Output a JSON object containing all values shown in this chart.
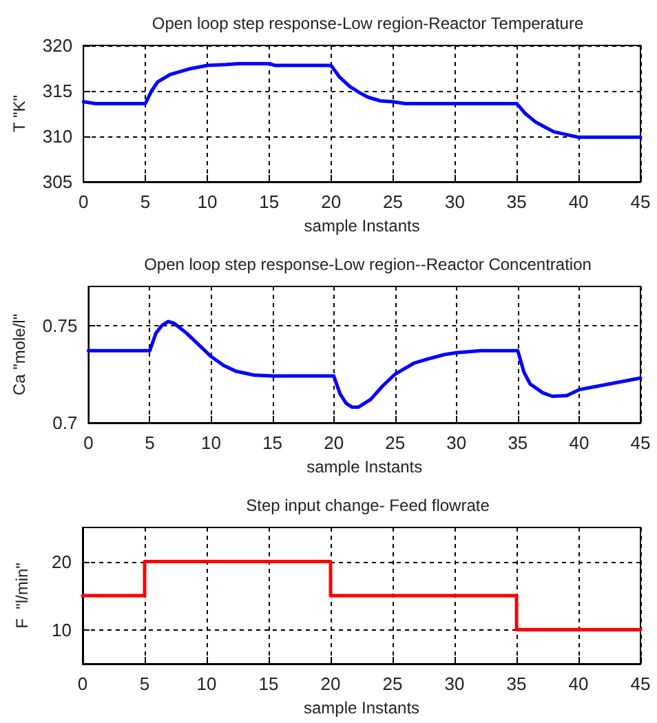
{
  "chart_data": [
    {
      "type": "line",
      "title": "Open loop step response-Low region-Reactor Temperature",
      "xlabel": "sample Instants",
      "ylabel": "T \"K\"",
      "x": [
        0,
        1,
        5,
        5.5,
        6,
        7,
        7.5,
        8.5,
        10,
        11.5,
        12.5,
        15,
        15.5,
        20,
        20.7,
        21.5,
        22.3,
        23,
        24,
        25,
        26,
        35,
        35.7,
        36.5,
        37.3,
        38,
        39,
        40,
        45
      ],
      "series": [
        {
          "color": "#0000ff",
          "values": [
            313.8,
            313.6,
            313.6,
            315.0,
            316.0,
            316.8,
            317.0,
            317.4,
            317.8,
            317.9,
            318.0,
            318.0,
            317.8,
            317.8,
            316.5,
            315.5,
            314.8,
            314.3,
            313.9,
            313.8,
            313.6,
            313.6,
            312.5,
            311.6,
            311.0,
            310.5,
            310.2,
            309.9,
            309.9
          ]
        }
      ],
      "xlim": [
        0,
        45
      ],
      "xticks": [
        0,
        5,
        10,
        15,
        20,
        25,
        30,
        35,
        40,
        45
      ],
      "ylim": [
        305,
        320
      ],
      "yticks": [
        305,
        310,
        315,
        320
      ],
      "grid": true,
      "line_style": "solid",
      "marker": "none"
    },
    {
      "type": "line",
      "title": "Open loop step response-Low region--Reactor Concentration",
      "xlabel": "sample Instants",
      "ylabel": "Ca \"mole/l\"",
      "x": [
        0,
        5,
        5.5,
        6,
        6.5,
        7,
        8,
        9,
        10,
        11,
        12,
        13.5,
        15,
        20,
        20.5,
        21,
        21.5,
        22,
        23,
        24,
        25,
        26.5,
        27.5,
        29,
        30,
        32,
        35,
        35.5,
        36,
        37,
        37.8,
        39,
        40,
        42.5,
        45
      ],
      "series": [
        {
          "color": "#0000ff",
          "values": [
            0.737,
            0.737,
            0.746,
            0.75,
            0.752,
            0.751,
            0.746,
            0.74,
            0.734,
            0.7295,
            0.7265,
            0.7245,
            0.724,
            0.724,
            0.715,
            0.71,
            0.708,
            0.708,
            0.712,
            0.719,
            0.725,
            0.7305,
            0.7325,
            0.735,
            0.736,
            0.737,
            0.737,
            0.726,
            0.72,
            0.7155,
            0.7136,
            0.714,
            0.717,
            0.72,
            0.723
          ]
        }
      ],
      "xlim": [
        0,
        45
      ],
      "xticks": [
        0,
        5,
        10,
        15,
        20,
        25,
        30,
        35,
        40,
        45
      ],
      "ylim": [
        0.7,
        0.77
      ],
      "yticks": [
        0.7,
        0.75
      ],
      "grid": true,
      "line_style": "solid",
      "marker": "none"
    },
    {
      "type": "step",
      "title": "Step input change- Feed flowrate",
      "xlabel": "sample Instants",
      "ylabel": "F  \"l/min\"",
      "x": [
        0,
        5,
        20,
        35,
        45
      ],
      "series": [
        {
          "color": "#ff0000",
          "values": [
            15,
            20,
            15,
            10,
            10
          ]
        }
      ],
      "xlim": [
        0,
        45
      ],
      "xticks": [
        0,
        5,
        10,
        15,
        20,
        25,
        30,
        35,
        40,
        45
      ],
      "ylim": [
        5,
        25
      ],
      "yticks": [
        10,
        20
      ],
      "grid": true,
      "line_style": "solid",
      "marker": "none"
    }
  ]
}
